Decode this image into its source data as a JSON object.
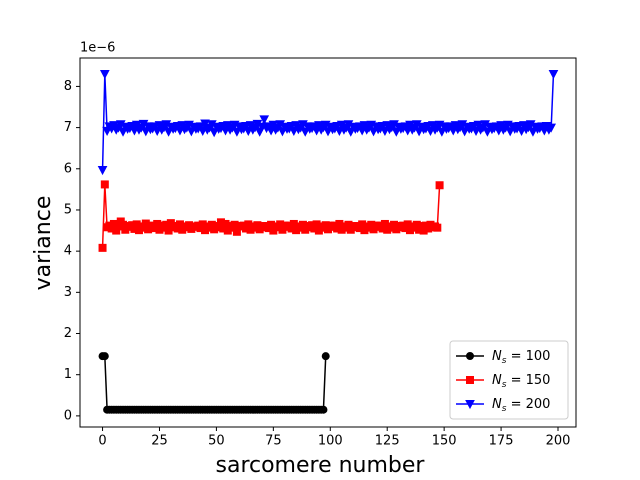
{
  "chart_data": {
    "type": "line",
    "x_label": "sarcomere number",
    "y_label": "variance",
    "y_offset_label": "1e−6",
    "xlim": [
      -9.9,
      207.9
    ],
    "ylim": [
      -0.27,
      8.69
    ],
    "xticks": [
      0,
      25,
      50,
      75,
      100,
      125,
      150,
      175,
      200
    ],
    "yticks": [
      0,
      1,
      2,
      3,
      4,
      5,
      6,
      7,
      8
    ],
    "legend": "lower right",
    "series": [
      {
        "name": "Ns = 100",
        "color": "#000000",
        "marker": "circle",
        "x": [
          0,
          1,
          2,
          3,
          4,
          5,
          6,
          7,
          8,
          9,
          10,
          11,
          12,
          13,
          14,
          15,
          16,
          17,
          18,
          19,
          20,
          21,
          22,
          23,
          24,
          25,
          26,
          27,
          28,
          29,
          30,
          31,
          32,
          33,
          34,
          35,
          36,
          37,
          38,
          39,
          40,
          41,
          42,
          43,
          44,
          45,
          46,
          47,
          48,
          49,
          50,
          51,
          52,
          53,
          54,
          55,
          56,
          57,
          58,
          59,
          60,
          61,
          62,
          63,
          64,
          65,
          66,
          67,
          68,
          69,
          70,
          71,
          72,
          73,
          74,
          75,
          76,
          77,
          78,
          79,
          80,
          81,
          82,
          83,
          84,
          85,
          86,
          87,
          88,
          89,
          90,
          91,
          92,
          93,
          94,
          95,
          96,
          97,
          98
        ],
        "values": [
          1.45,
          1.45,
          0.15,
          0.15,
          0.15,
          0.15,
          0.15,
          0.15,
          0.15,
          0.15,
          0.15,
          0.15,
          0.15,
          0.15,
          0.15,
          0.15,
          0.15,
          0.15,
          0.15,
          0.15,
          0.15,
          0.15,
          0.15,
          0.15,
          0.15,
          0.15,
          0.15,
          0.15,
          0.15,
          0.15,
          0.15,
          0.15,
          0.15,
          0.15,
          0.15,
          0.15,
          0.15,
          0.15,
          0.15,
          0.15,
          0.15,
          0.15,
          0.15,
          0.15,
          0.15,
          0.15,
          0.15,
          0.15,
          0.15,
          0.15,
          0.15,
          0.15,
          0.15,
          0.15,
          0.15,
          0.15,
          0.15,
          0.15,
          0.15,
          0.15,
          0.15,
          0.15,
          0.15,
          0.15,
          0.15,
          0.15,
          0.15,
          0.15,
          0.15,
          0.15,
          0.15,
          0.15,
          0.15,
          0.15,
          0.15,
          0.15,
          0.15,
          0.15,
          0.15,
          0.15,
          0.15,
          0.15,
          0.15,
          0.15,
          0.15,
          0.15,
          0.15,
          0.15,
          0.15,
          0.15,
          0.15,
          0.15,
          0.15,
          0.15,
          0.15,
          0.15,
          0.15,
          0.15,
          1.45
        ]
      },
      {
        "name": "Ns = 150",
        "color": "#ff0000",
        "marker": "square",
        "x": [
          0,
          1,
          2,
          3,
          4,
          5,
          6,
          7,
          8,
          9,
          10,
          11,
          12,
          13,
          14,
          15,
          16,
          17,
          18,
          19,
          20,
          21,
          22,
          23,
          24,
          25,
          26,
          27,
          28,
          29,
          30,
          31,
          32,
          33,
          34,
          35,
          36,
          37,
          38,
          39,
          40,
          41,
          42,
          43,
          44,
          45,
          46,
          47,
          48,
          49,
          50,
          51,
          52,
          53,
          54,
          55,
          56,
          57,
          58,
          59,
          60,
          61,
          62,
          63,
          64,
          65,
          66,
          67,
          68,
          69,
          70,
          71,
          72,
          73,
          74,
          75,
          76,
          77,
          78,
          79,
          80,
          81,
          82,
          83,
          84,
          85,
          86,
          87,
          88,
          89,
          90,
          91,
          92,
          93,
          94,
          95,
          96,
          97,
          98,
          99,
          100,
          101,
          102,
          103,
          104,
          105,
          106,
          107,
          108,
          109,
          110,
          111,
          112,
          113,
          114,
          115,
          116,
          117,
          118,
          119,
          120,
          121,
          122,
          123,
          124,
          125,
          126,
          127,
          128,
          129,
          130,
          131,
          132,
          133,
          134,
          135,
          136,
          137,
          138,
          139,
          140,
          141,
          142,
          143,
          144,
          145,
          146,
          147,
          148
        ],
        "values": [
          4.08,
          5.62,
          4.58,
          4.62,
          4.55,
          4.66,
          4.5,
          4.6,
          4.72,
          4.64,
          4.52,
          4.61,
          4.59,
          4.63,
          4.54,
          4.65,
          4.51,
          4.6,
          4.57,
          4.67,
          4.53,
          4.62,
          4.6,
          4.56,
          4.66,
          4.52,
          4.62,
          4.57,
          4.64,
          4.5,
          4.68,
          4.58,
          4.61,
          4.55,
          4.65,
          4.52,
          4.6,
          4.58,
          4.63,
          4.54,
          4.6,
          4.59,
          4.62,
          4.56,
          4.65,
          4.51,
          4.6,
          4.57,
          4.64,
          4.53,
          4.61,
          4.58,
          4.7,
          4.55,
          4.66,
          4.5,
          4.61,
          4.57,
          4.64,
          4.47,
          4.61,
          4.6,
          4.62,
          4.55,
          4.65,
          4.52,
          4.6,
          4.57,
          4.63,
          4.53,
          4.61,
          4.58,
          4.61,
          4.56,
          4.64,
          4.5,
          4.6,
          4.58,
          4.65,
          4.52,
          4.62,
          4.59,
          4.62,
          4.55,
          4.66,
          4.51,
          4.6,
          4.57,
          4.64,
          4.52,
          4.61,
          4.58,
          4.63,
          4.55,
          4.65,
          4.5,
          4.6,
          4.57,
          4.63,
          4.53,
          4.62,
          4.59,
          4.62,
          4.55,
          4.66,
          4.52,
          4.6,
          4.57,
          4.64,
          4.52,
          4.61,
          4.58,
          4.61,
          4.56,
          4.65,
          4.51,
          4.6,
          4.57,
          4.64,
          4.53,
          4.62,
          4.59,
          4.62,
          4.55,
          4.66,
          4.52,
          4.6,
          4.57,
          4.64,
          4.53,
          4.61,
          4.58,
          4.62,
          4.56,
          4.65,
          4.51,
          4.6,
          4.57,
          4.64,
          4.52,
          4.61,
          4.5,
          4.62,
          4.55,
          4.64,
          4.58,
          4.6,
          4.57,
          5.6
        ]
      },
      {
        "name": "Ns = 200",
        "color": "#0000ff",
        "marker": "triangle-down",
        "x": [
          0,
          1,
          2,
          3,
          4,
          5,
          6,
          7,
          8,
          9,
          10,
          11,
          12,
          13,
          14,
          15,
          16,
          17,
          18,
          19,
          20,
          21,
          22,
          23,
          24,
          25,
          26,
          27,
          28,
          29,
          30,
          31,
          32,
          33,
          34,
          35,
          36,
          37,
          38,
          39,
          40,
          41,
          42,
          43,
          44,
          45,
          46,
          47,
          48,
          49,
          50,
          51,
          52,
          53,
          54,
          55,
          56,
          57,
          58,
          59,
          60,
          61,
          62,
          63,
          64,
          65,
          66,
          67,
          68,
          69,
          70,
          71,
          72,
          73,
          74,
          75,
          76,
          77,
          78,
          79,
          80,
          81,
          82,
          83,
          84,
          85,
          86,
          87,
          88,
          89,
          90,
          91,
          92,
          93,
          94,
          95,
          96,
          97,
          98,
          99,
          100,
          101,
          102,
          103,
          104,
          105,
          106,
          107,
          108,
          109,
          110,
          111,
          112,
          113,
          114,
          115,
          116,
          117,
          118,
          119,
          120,
          121,
          122,
          123,
          124,
          125,
          126,
          127,
          128,
          129,
          130,
          131,
          132,
          133,
          134,
          135,
          136,
          137,
          138,
          139,
          140,
          141,
          142,
          143,
          144,
          145,
          146,
          147,
          148,
          149,
          150,
          151,
          152,
          153,
          154,
          155,
          156,
          157,
          158,
          159,
          160,
          161,
          162,
          163,
          164,
          165,
          166,
          167,
          168,
          169,
          170,
          171,
          172,
          173,
          174,
          175,
          176,
          177,
          178,
          179,
          180,
          181,
          182,
          183,
          184,
          185,
          186,
          187,
          188,
          189,
          190,
          191,
          192,
          193,
          194,
          195,
          196,
          197,
          198
        ],
        "values": [
          5.97,
          8.3,
          6.92,
          7.03,
          6.98,
          7.06,
          6.95,
          7.0,
          7.08,
          6.9,
          7.02,
          6.97,
          6.99,
          7.04,
          6.93,
          7.07,
          6.95,
          7.0,
          7.09,
          6.91,
          7.03,
          6.96,
          6.98,
          7.03,
          6.92,
          7.06,
          6.95,
          7.01,
          7.08,
          6.9,
          7.02,
          6.97,
          6.99,
          7.04,
          6.93,
          7.06,
          6.96,
          7.0,
          7.07,
          6.91,
          7.02,
          6.97,
          6.98,
          7.03,
          6.92,
          7.1,
          6.95,
          7.0,
          7.08,
          6.89,
          7.02,
          6.97,
          6.99,
          7.04,
          6.93,
          7.06,
          6.95,
          7.0,
          7.07,
          6.9,
          7.03,
          6.96,
          6.98,
          7.04,
          6.92,
          7.06,
          6.95,
          7.01,
          7.09,
          6.9,
          7.02,
          7.2,
          6.99,
          7.03,
          6.93,
          7.07,
          6.95,
          7.0,
          7.08,
          6.91,
          7.02,
          6.97,
          6.98,
          7.04,
          6.92,
          7.06,
          6.96,
          7.0,
          7.08,
          6.9,
          7.03,
          6.97,
          6.99,
          7.03,
          6.93,
          7.06,
          6.95,
          7.01,
          7.07,
          6.91,
          7.02,
          6.96,
          6.98,
          7.04,
          6.92,
          7.07,
          6.95,
          7.0,
          7.08,
          6.9,
          7.02,
          6.97,
          6.99,
          7.03,
          6.93,
          7.06,
          6.95,
          7.0,
          7.07,
          6.91,
          7.03,
          6.96,
          6.98,
          7.04,
          6.92,
          7.06,
          6.96,
          7.01,
          7.08,
          6.9,
          7.02,
          6.97,
          6.99,
          7.03,
          6.93,
          7.07,
          6.95,
          7.0,
          7.08,
          6.91,
          7.02,
          6.96,
          6.98,
          7.04,
          6.92,
          7.06,
          6.95,
          7.0,
          7.07,
          6.9,
          7.03,
          6.97,
          6.99,
          7.03,
          6.93,
          7.06,
          6.96,
          7.01,
          7.08,
          6.91,
          7.02,
          6.97,
          6.98,
          7.04,
          6.92,
          7.07,
          6.95,
          7.0,
          7.08,
          6.9,
          7.02,
          6.96,
          6.99,
          7.03,
          6.93,
          7.06,
          6.95,
          7.0,
          7.07,
          6.91,
          7.03,
          6.97,
          6.98,
          7.04,
          6.92,
          7.06,
          6.96,
          7.01,
          7.08,
          6.9,
          7.02,
          6.97,
          6.99,
          7.03,
          6.93,
          7.04,
          6.95,
          7.0,
          8.3
        ]
      }
    ]
  }
}
